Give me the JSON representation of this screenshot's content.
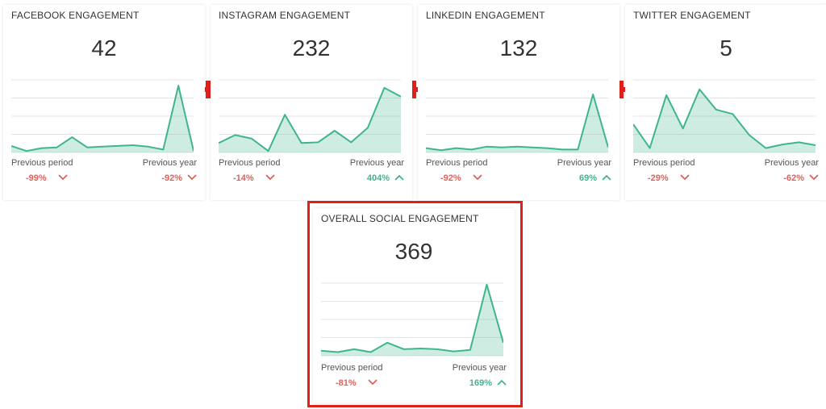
{
  "widgets": [
    {
      "title": "FACEBOOK ENGAGEMENT",
      "value": 42,
      "sparkline": {
        "values": [
          9,
          2,
          6,
          7,
          21,
          7,
          8,
          9,
          10,
          8,
          4,
          92,
          2
        ],
        "ylim": [
          0,
          100
        ],
        "yticks": [
          0,
          25,
          50,
          75,
          100
        ],
        "color": "#3fb58e"
      },
      "comparisons": [
        {
          "label": "Previous period",
          "change": "-99%",
          "trend": "down"
        },
        {
          "label": "Previous year",
          "change": "-92%",
          "trend": "down"
        }
      ]
    },
    {
      "title": "INSTAGRAM ENGAGEMENT",
      "value": 232,
      "sparkline": {
        "values": [
          13,
          24,
          19,
          2,
          52,
          13,
          14,
          30,
          14,
          34,
          89,
          77
        ],
        "ylim": [
          0,
          100
        ],
        "yticks": [
          0,
          25,
          50,
          75,
          100
        ],
        "color": "#3fb58e"
      },
      "comparisons": [
        {
          "label": "Previous period",
          "change": "-14%",
          "trend": "down"
        },
        {
          "label": "Previous year",
          "change": "404%",
          "trend": "up"
        }
      ]
    },
    {
      "title": "LINKEDIN ENGAGEMENT",
      "value": 132,
      "sparkline": {
        "values": [
          6,
          3,
          6,
          4,
          8,
          7,
          8,
          7,
          6,
          4,
          4,
          80,
          7
        ],
        "ylim": [
          0,
          100
        ],
        "yticks": [
          0,
          25,
          50,
          75,
          100
        ],
        "color": "#3fb58e"
      },
      "comparisons": [
        {
          "label": "Previous period",
          "change": "-92%",
          "trend": "down"
        },
        {
          "label": "Previous year",
          "change": "69%",
          "trend": "up"
        }
      ]
    },
    {
      "title": "TWITTER ENGAGEMENT",
      "value": 5,
      "sparkline": {
        "values": [
          39,
          6,
          79,
          33,
          87,
          59,
          53,
          24,
          6,
          11,
          14,
          10
        ],
        "ylim": [
          0,
          100
        ],
        "yticks": [
          0,
          25,
          50,
          75,
          100
        ],
        "color": "#3fb58e"
      },
      "comparisons": [
        {
          "label": "Previous period",
          "change": "-29%",
          "trend": "down"
        },
        {
          "label": "Previous year",
          "change": "-62%",
          "trend": "down"
        }
      ]
    },
    {
      "title": "OVERALL SOCIAL ENGAGEMENT",
      "value": 369,
      "sparkline": {
        "values": [
          7,
          5,
          9,
          5,
          18,
          9,
          10,
          9,
          6,
          8,
          98,
          18
        ],
        "ylim": [
          0,
          100
        ],
        "yticks": [
          0,
          25,
          50,
          75,
          100
        ],
        "color": "#3fb58e"
      },
      "comparisons": [
        {
          "label": "Previous period",
          "change": "-81%",
          "trend": "down"
        },
        {
          "label": "Previous year",
          "change": "169%",
          "trend": "up"
        }
      ]
    }
  ]
}
